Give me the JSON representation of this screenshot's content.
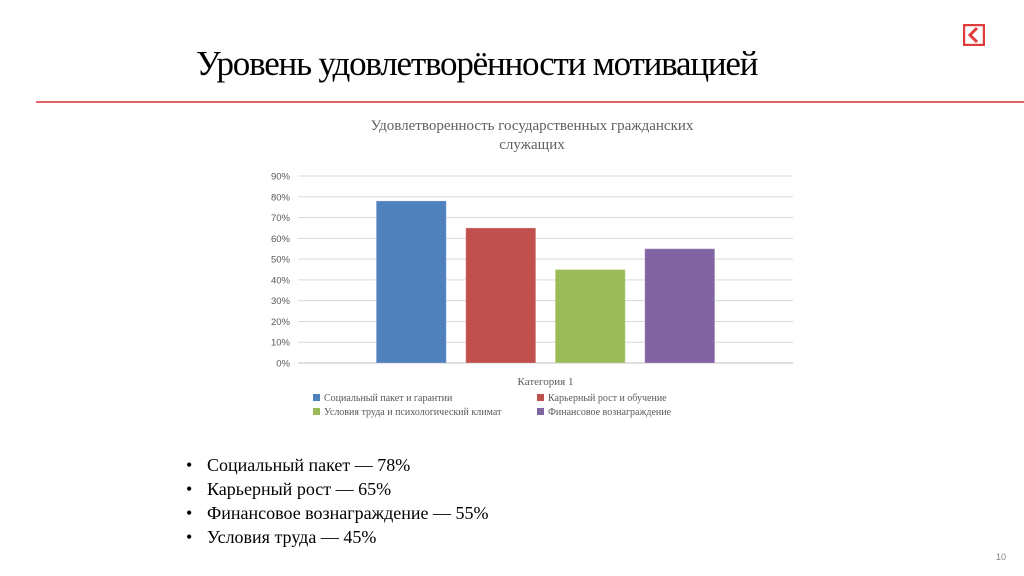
{
  "slide": {
    "title": "Уровень удовлетворённости мотивацией",
    "page_number": "10",
    "accent_color": "#e03c3c"
  },
  "bullets": [
    "Социальный пакет — 78%",
    "Карьерный рост — 65%",
    "Финансовое вознаграждение — 55%",
    "Условия труда — 45%"
  ],
  "chart_data": {
    "type": "bar",
    "title": "Удовлетворенность государственных гражданских служащих",
    "title_lines": [
      "Удовлетворенность государственных гражданских",
      "служащих"
    ],
    "categories": [
      "Категория 1"
    ],
    "xlabel": "",
    "ylabel": "",
    "ylim": [
      0,
      90
    ],
    "yticks": [
      "0%",
      "10%",
      "20%",
      "30%",
      "40%",
      "50%",
      "60%",
      "70%",
      "80%",
      "90%"
    ],
    "grid": true,
    "legend_position": "bottom",
    "series": [
      {
        "name": "Социальный пакет и гарантии",
        "values": [
          78
        ],
        "color": "#4f81bd"
      },
      {
        "name": "Карьерный рост и обучение",
        "values": [
          65
        ],
        "color": "#c0504d"
      },
      {
        "name": "Условия труда и психологический климат",
        "values": [
          45
        ],
        "color": "#9bbb59"
      },
      {
        "name": "Финансовое вознаграждение",
        "values": [
          55
        ],
        "color": "#8064a2"
      }
    ]
  }
}
